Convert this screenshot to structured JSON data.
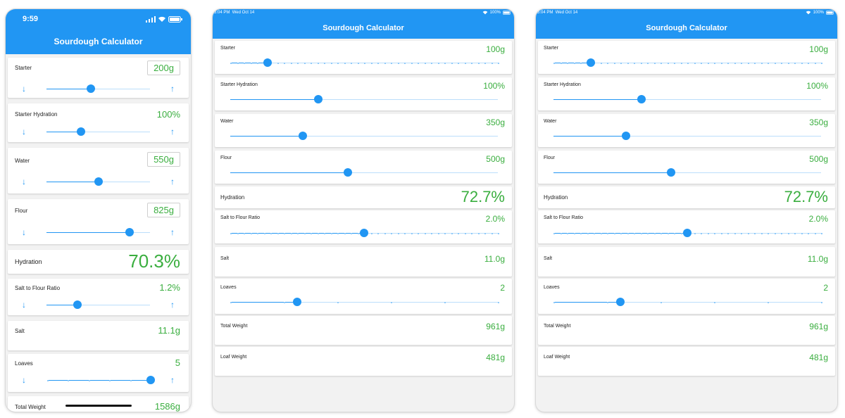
{
  "phone": {
    "time": "9:59",
    "title": "Sourdough Calculator",
    "rows": {
      "starter": {
        "label": "Starter",
        "value": "200g",
        "pos": 0.43
      },
      "starter_hydration": {
        "label": "Starter Hydration",
        "value": "100%",
        "pos": 0.33
      },
      "water": {
        "label": "Water",
        "value": "550g",
        "pos": 0.5
      },
      "flour": {
        "label": "Flour",
        "value": "825g",
        "pos": 0.8
      },
      "hydration": {
        "label": "Hydration",
        "value": "70.3%"
      },
      "salt_ratio": {
        "label": "Salt to Flour Ratio",
        "value": "1.2%",
        "pos": 0.3
      },
      "salt": {
        "label": "Salt",
        "value": "11.1g"
      },
      "loaves": {
        "label": "Loaves",
        "value": "5",
        "pos": 1.0
      },
      "total_weight": {
        "label": "Total Weight",
        "value": "1586g"
      }
    }
  },
  "tablet": {
    "time": "3:04 PM",
    "date": "Wed Oct 14",
    "battery": "100%",
    "title": "Sourdough Calculator",
    "rows": {
      "starter": {
        "label": "Starter",
        "value": "100g",
        "pos": 0.14
      },
      "starter_hydration": {
        "label": "Starter Hydration",
        "value": "100%",
        "pos": 0.33
      },
      "water": {
        "label": "Water",
        "value": "350g",
        "pos": 0.27
      },
      "flour": {
        "label": "Flour",
        "value": "500g",
        "pos": 0.44
      },
      "hydration": {
        "label": "Hydration",
        "value": "72.7%"
      },
      "salt_ratio": {
        "label": "Salt to Flour Ratio",
        "value": "2.0%",
        "pos": 0.5
      },
      "salt": {
        "label": "Salt",
        "value": "11.0g"
      },
      "loaves": {
        "label": "Loaves",
        "value": "2",
        "pos": 0.25
      },
      "total_weight": {
        "label": "Total Weight",
        "value": "961g"
      },
      "loaf_weight": {
        "label": "Loaf Weight",
        "value": "481g"
      }
    }
  },
  "colors": {
    "accent": "#2196f3",
    "value_green": "#3aae3f",
    "track": "#bbdefb"
  },
  "icons": {
    "decrement": "arrow-down-icon",
    "increment": "arrow-up-icon",
    "wifi": "wifi-icon",
    "battery": "battery-icon"
  }
}
